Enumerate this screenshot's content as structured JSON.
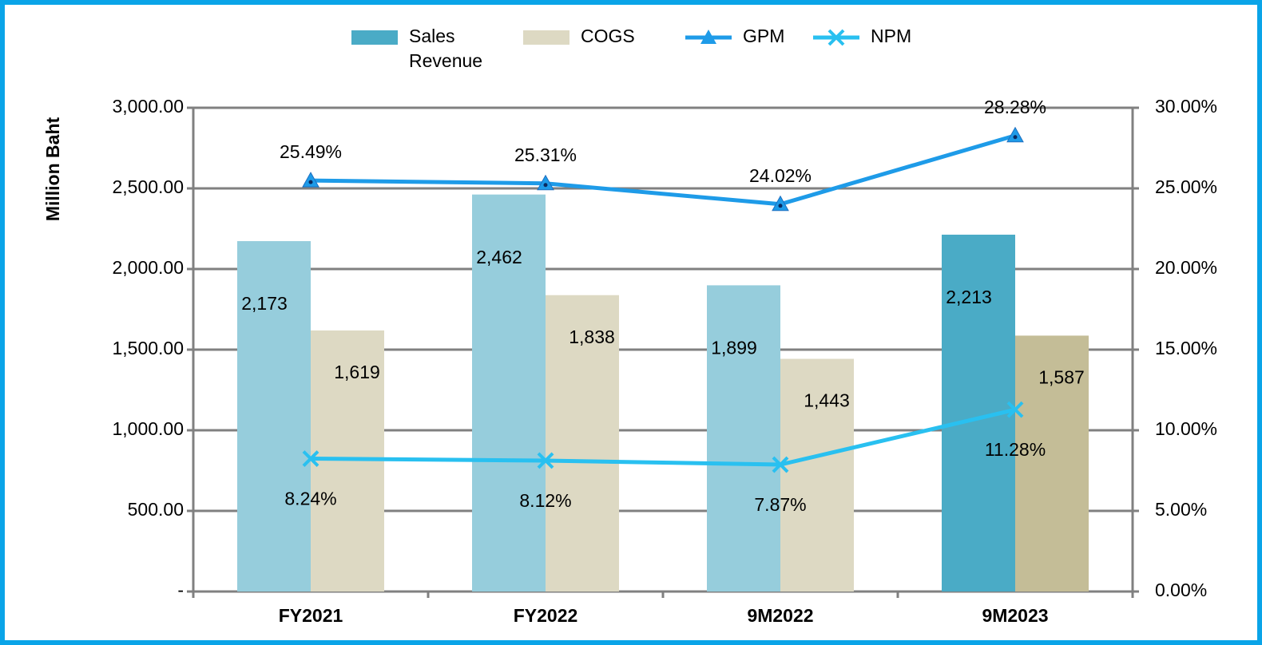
{
  "chart_data": {
    "type": "bar_line",
    "y_axis_label": "Million Baht",
    "categories": [
      "FY2021",
      "FY2022",
      "9M2022",
      "9M2023"
    ],
    "series": [
      {
        "name": "Sales Revenue",
        "type": "bar",
        "color": "#4aabc6",
        "colors": [
          "#96cddc",
          "#96cddc",
          "#96cddc",
          "#4aabc6"
        ],
        "values": [
          2173,
          2462,
          1899,
          2213
        ],
        "value_labels": [
          "2,173",
          "2,462",
          "1,899",
          "2,213"
        ]
      },
      {
        "name": "COGS",
        "type": "bar",
        "color": "#ddd9c3",
        "colors": [
          "#ddd9c3",
          "#ddd9c3",
          "#ddd9c3",
          "#c4bd97"
        ],
        "values": [
          1619,
          1838,
          1443,
          1587
        ],
        "value_labels": [
          "1,619",
          "1,838",
          "1,443",
          "1,587"
        ]
      },
      {
        "name": "GPM",
        "type": "line",
        "axis": "y2",
        "marker": "triangle",
        "color": "#1e9be8",
        "values": [
          25.49,
          25.31,
          24.02,
          28.28
        ],
        "value_labels": [
          "25.49%",
          "25.31%",
          "24.02%",
          "28.28%"
        ]
      },
      {
        "name": "NPM",
        "type": "line",
        "axis": "y2",
        "marker": "x",
        "color": "#29c0f0",
        "values": [
          8.24,
          8.12,
          7.87,
          11.28
        ],
        "value_labels": [
          "8.24%",
          "8.12%",
          "7.87%",
          "11.28%"
        ]
      }
    ],
    "ylim": [
      0,
      3000
    ],
    "yticks": [
      {
        "value": 0,
        "label": "-"
      },
      {
        "value": 500,
        "label": "500.00"
      },
      {
        "value": 1000,
        "label": "1,000.00"
      },
      {
        "value": 1500,
        "label": "1,500.00"
      },
      {
        "value": 2000,
        "label": "2,000.00"
      },
      {
        "value": 2500,
        "label": "2,500.00"
      },
      {
        "value": 3000,
        "label": "3,000.00"
      }
    ],
    "y2lim": [
      0,
      30
    ],
    "y2ticks": [
      {
        "value": 0,
        "label": "0.00%"
      },
      {
        "value": 5,
        "label": "5.00%"
      },
      {
        "value": 10,
        "label": "10.00%"
      },
      {
        "value": 15,
        "label": "15.00%"
      },
      {
        "value": 20,
        "label": "20.00%"
      },
      {
        "value": 25,
        "label": "25.00%"
      },
      {
        "value": 30,
        "label": "30.00%"
      }
    ],
    "grid": true,
    "legend": "top"
  }
}
